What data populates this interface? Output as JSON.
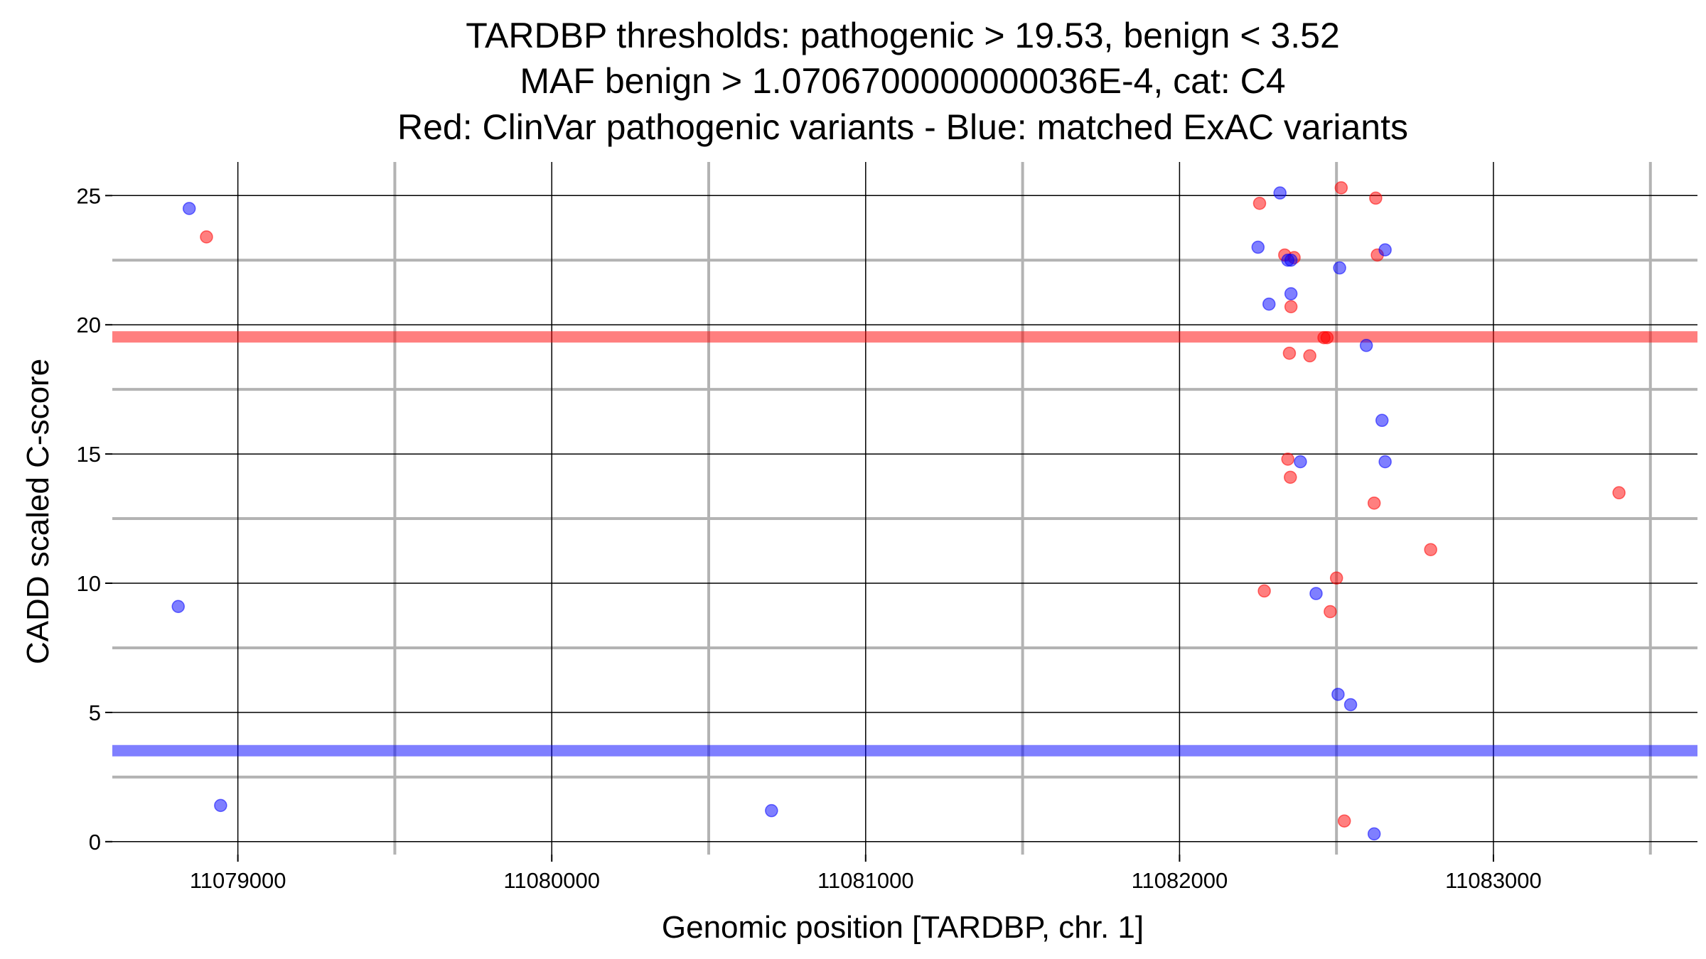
{
  "chart_data": {
    "type": "scatter",
    "title": [
      "TARDBP thresholds: pathogenic > 19.53, benign < 3.52",
      "MAF benign > 1.0706700000000036E-4, cat: C4",
      "Red: ClinVar pathogenic variants - Blue: matched ExAC variants"
    ],
    "xlabel": "Genomic position [TARDBP, chr. 1]",
    "ylabel": "CADD scaled C-score",
    "xlim": [
      11078600,
      11083650
    ],
    "ylim": [
      -0.5,
      26.3
    ],
    "x_ticks": [
      11079000,
      11080000,
      11081000,
      11082000,
      11083000
    ],
    "x_tick_labels": [
      "11079000",
      "11080000",
      "11081000",
      "11082000",
      "11083000"
    ],
    "x_minor_ticks": [
      11079500,
      11080500,
      11081500,
      11082500,
      11083500
    ],
    "y_ticks": [
      0,
      5,
      10,
      15,
      20,
      25
    ],
    "y_tick_labels": [
      "0",
      "5",
      "10",
      "15",
      "20",
      "25"
    ],
    "y_minor_ticks": [
      2.5,
      7.5,
      12.5,
      17.5,
      22.5
    ],
    "grid": true,
    "colors": {
      "pathogenic": "#ff0000",
      "benign": "#0000ff",
      "grid_major": "#000000",
      "grid_minor": "#b3b3b3"
    },
    "thresholds": [
      {
        "name": "pathogenic",
        "value": 19.53,
        "color": "#ff0000"
      },
      {
        "name": "benign",
        "value": 3.52,
        "color": "#0000ff"
      }
    ],
    "series": [
      {
        "name": "ClinVar pathogenic variants",
        "color": "#ff0000",
        "points": [
          {
            "x": 11078900,
            "y": 23.4
          },
          {
            "x": 11082255,
            "y": 24.7
          },
          {
            "x": 11082515,
            "y": 25.3
          },
          {
            "x": 11082625,
            "y": 24.9
          },
          {
            "x": 11082335,
            "y": 22.7
          },
          {
            "x": 11082365,
            "y": 22.6
          },
          {
            "x": 11082630,
            "y": 22.7
          },
          {
            "x": 11082355,
            "y": 20.7
          },
          {
            "x": 11082460,
            "y": 19.5
          },
          {
            "x": 11082470,
            "y": 19.5
          },
          {
            "x": 11082350,
            "y": 18.9
          },
          {
            "x": 11082415,
            "y": 18.8
          },
          {
            "x": 11082345,
            "y": 14.8
          },
          {
            "x": 11082353,
            "y": 14.1
          },
          {
            "x": 11082620,
            "y": 13.1
          },
          {
            "x": 11083400,
            "y": 13.5
          },
          {
            "x": 11082800,
            "y": 11.3
          },
          {
            "x": 11082500,
            "y": 10.2
          },
          {
            "x": 11082270,
            "y": 9.7
          },
          {
            "x": 11082480,
            "y": 8.9
          },
          {
            "x": 11082525,
            "y": 0.8
          }
        ]
      },
      {
        "name": "matched ExAC variants",
        "color": "#0000ff",
        "points": [
          {
            "x": 11078845,
            "y": 24.5
          },
          {
            "x": 11082320,
            "y": 25.1
          },
          {
            "x": 11082250,
            "y": 23.0
          },
          {
            "x": 11082655,
            "y": 22.9
          },
          {
            "x": 11082345,
            "y": 22.5
          },
          {
            "x": 11082355,
            "y": 22.5
          },
          {
            "x": 11082510,
            "y": 22.2
          },
          {
            "x": 11082355,
            "y": 21.2
          },
          {
            "x": 11082285,
            "y": 20.8
          },
          {
            "x": 11082595,
            "y": 19.2
          },
          {
            "x": 11082645,
            "y": 16.3
          },
          {
            "x": 11082385,
            "y": 14.7
          },
          {
            "x": 11082655,
            "y": 14.7
          },
          {
            "x": 11078810,
            "y": 9.1
          },
          {
            "x": 11082435,
            "y": 9.6
          },
          {
            "x": 11082505,
            "y": 5.7
          },
          {
            "x": 11082545,
            "y": 5.3
          },
          {
            "x": 11078945,
            "y": 1.4
          },
          {
            "x": 11080700,
            "y": 1.2
          },
          {
            "x": 11082620,
            "y": 0.3
          }
        ]
      }
    ]
  }
}
